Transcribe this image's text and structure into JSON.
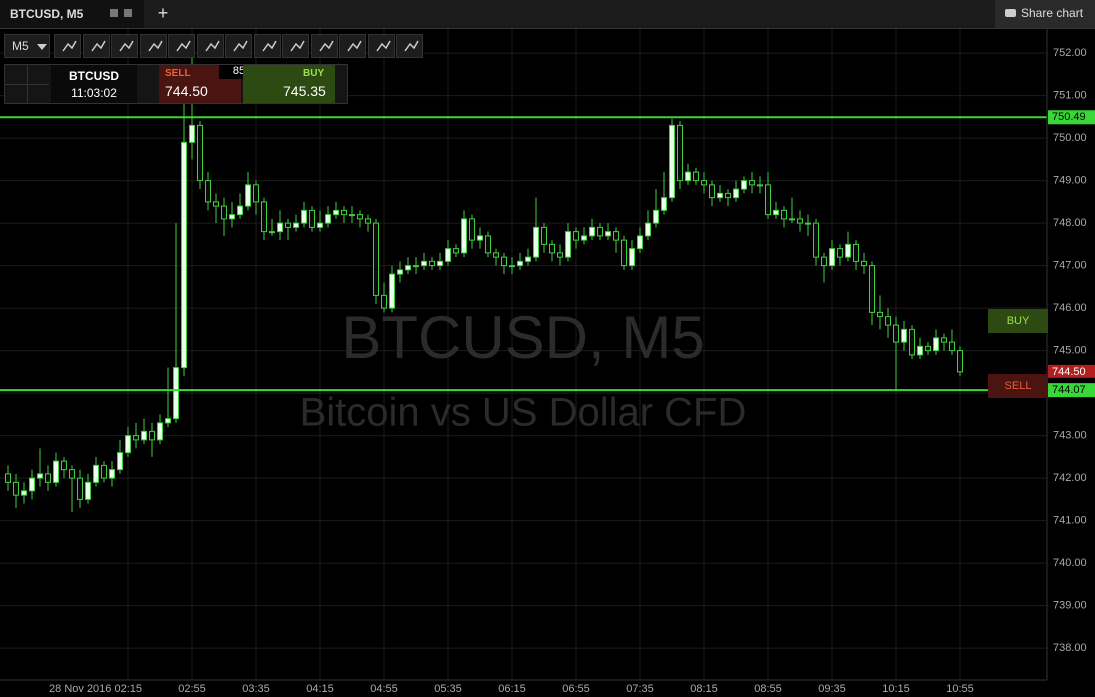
{
  "header": {
    "tab": "BTCUSD, M5",
    "share": "Share chart"
  },
  "toolbar": {
    "timeframe": "M5"
  },
  "ticket": {
    "symbol": "BTCUSD",
    "time": "11:03:02",
    "sell_label": "SELL",
    "sell_price": "744.50",
    "spread": "85",
    "buy_label": "BUY",
    "buy_price": "745.35"
  },
  "side_buttons": {
    "buy": "BUY",
    "sell": "SELL"
  },
  "chart_data": {
    "type": "candlestick",
    "title": "BTCUSD, M5",
    "subtitle": "Bitcoin vs US Dollar CFD",
    "up_color": "#eaffea",
    "down_color": "#0b0b0b",
    "wick_color": "#3fcf3f",
    "grid": true,
    "categories": [
      null,
      null,
      null,
      null,
      null,
      null,
      null,
      null,
      null,
      null,
      null,
      null,
      null,
      null,
      null,
      "28 Nov 2016 02:15",
      null,
      null,
      null,
      null,
      null,
      null,
      null,
      "02:55",
      null,
      null,
      null,
      null,
      null,
      null,
      null,
      "03:35",
      null,
      null,
      null,
      null,
      null,
      null,
      null,
      "04:15",
      null,
      null,
      null,
      null,
      null,
      null,
      null,
      "04:55",
      null,
      null,
      null,
      null,
      null,
      null,
      null,
      "05:35",
      null,
      null,
      null,
      null,
      null,
      null,
      null,
      "06:15",
      null,
      null,
      null,
      null,
      null,
      null,
      null,
      "06:55",
      null,
      null,
      null,
      null,
      null,
      null,
      null,
      "07:35",
      null,
      null,
      null,
      null,
      null,
      null,
      null,
      "08:15",
      null,
      null,
      null,
      null,
      null,
      null,
      null,
      "08:55",
      null,
      null,
      null,
      null,
      null,
      null,
      null,
      "09:35",
      null,
      null,
      null,
      null,
      null,
      null,
      null,
      "10:15",
      null,
      null,
      null,
      null,
      null,
      null,
      null,
      "10:55"
    ],
    "open": [
      742.1,
      741.9,
      741.6,
      741.7,
      742.0,
      742.1,
      741.9,
      742.4,
      742.2,
      742.0,
      741.5,
      741.9,
      742.3,
      742.0,
      742.2,
      742.6,
      743.0,
      742.9,
      743.1,
      742.9,
      743.3,
      743.4,
      744.6,
      749.9,
      750.3,
      749.0,
      748.5,
      748.4,
      748.1,
      748.2,
      748.4,
      748.9,
      748.5,
      747.8,
      747.8,
      748.0,
      747.9,
      748.0,
      748.3,
      747.9,
      748.0,
      748.2,
      748.3,
      748.2,
      748.2,
      748.1,
      748.0,
      746.3,
      746.0,
      746.8,
      746.9,
      747.0,
      747.0,
      747.1,
      747.0,
      747.1,
      747.4,
      747.3,
      748.1,
      747.6,
      747.7,
      747.3,
      747.2,
      747.0,
      747.0,
      747.1,
      747.2,
      747.9,
      747.5,
      747.3,
      747.2,
      747.8,
      747.6,
      747.7,
      747.9,
      747.7,
      747.8,
      747.6,
      747.0,
      747.4,
      747.7,
      748.0,
      748.3,
      748.6,
      750.3,
      749.0,
      749.2,
      749.0,
      748.9,
      748.6,
      748.7,
      748.6,
      748.8,
      749.0,
      748.9,
      748.9,
      748.2,
      748.3,
      748.1,
      748.1,
      748.0,
      748.0,
      747.2,
      747.0,
      747.4,
      747.2,
      747.5,
      747.1,
      747.0,
      745.9,
      745.8,
      745.6,
      745.2,
      745.5,
      744.9,
      745.1,
      745.0,
      745.3,
      745.2,
      745.0
    ],
    "high": [
      742.3,
      742.1,
      741.9,
      742.2,
      742.7,
      742.3,
      742.6,
      742.5,
      742.3,
      742.2,
      742.1,
      742.5,
      742.4,
      742.4,
      742.9,
      743.2,
      743.3,
      743.4,
      743.3,
      743.5,
      744.6,
      748.0,
      751.5,
      751.9,
      750.4,
      749.2,
      748.7,
      748.6,
      748.5,
      748.7,
      749.2,
      749.0,
      748.6,
      748.1,
      748.3,
      748.1,
      748.2,
      748.5,
      748.4,
      748.3,
      748.4,
      748.5,
      748.4,
      748.4,
      748.3,
      748.2,
      748.1,
      746.6,
      747.0,
      747.1,
      747.2,
      747.2,
      747.3,
      747.2,
      747.3,
      747.6,
      747.5,
      748.3,
      748.2,
      747.9,
      747.8,
      747.4,
      747.3,
      747.2,
      747.3,
      747.4,
      748.6,
      748.0,
      747.6,
      747.5,
      748.0,
      747.9,
      747.9,
      748.1,
      748.0,
      748.0,
      747.9,
      747.7,
      747.6,
      747.9,
      748.3,
      748.8,
      749.2,
      750.45,
      750.4,
      749.4,
      749.3,
      749.2,
      749.0,
      748.9,
      748.8,
      749.0,
      749.1,
      749.2,
      749.1,
      749.2,
      748.5,
      748.4,
      748.6,
      748.3,
      748.2,
      748.1,
      747.3,
      747.6,
      747.5,
      747.8,
      747.6,
      747.3,
      747.1,
      746.3,
      746.0,
      745.8,
      745.7,
      745.6,
      745.3,
      745.2,
      745.5,
      745.4,
      745.5,
      745.1
    ],
    "low": [
      741.7,
      741.3,
      741.4,
      741.5,
      741.8,
      741.7,
      741.8,
      742.0,
      741.2,
      741.3,
      741.4,
      741.8,
      741.9,
      741.8,
      742.1,
      742.5,
      742.7,
      742.8,
      742.5,
      742.8,
      743.2,
      743.3,
      744.4,
      749.5,
      748.8,
      748.3,
      748.0,
      747.7,
      747.9,
      748.1,
      748.3,
      748.2,
      747.6,
      747.7,
      747.6,
      747.6,
      747.8,
      747.9,
      747.8,
      747.8,
      747.9,
      748.1,
      748.0,
      748.0,
      747.9,
      747.8,
      746.1,
      745.9,
      745.9,
      746.6,
      746.8,
      746.8,
      746.9,
      746.9,
      746.9,
      747.0,
      747.2,
      747.2,
      747.4,
      747.4,
      747.2,
      747.0,
      746.8,
      746.8,
      746.9,
      747.0,
      747.1,
      747.3,
      747.1,
      747.0,
      747.1,
      747.4,
      747.5,
      747.6,
      747.6,
      747.6,
      747.3,
      746.9,
      746.9,
      747.3,
      747.6,
      747.9,
      748.2,
      748.5,
      748.8,
      748.9,
      748.9,
      748.7,
      748.4,
      748.5,
      748.4,
      748.5,
      748.7,
      748.7,
      748.7,
      748.1,
      748.1,
      747.9,
      748.0,
      747.8,
      747.7,
      747.0,
      746.6,
      746.9,
      747.0,
      747.1,
      746.9,
      746.8,
      745.6,
      745.5,
      745.3,
      744.07,
      745.0,
      744.8,
      744.8,
      744.9,
      744.9,
      745.0,
      744.9,
      744.4
    ],
    "close": [
      741.9,
      741.6,
      741.7,
      742.0,
      742.1,
      741.9,
      742.4,
      742.2,
      742.0,
      741.5,
      741.9,
      742.3,
      742.0,
      742.2,
      742.6,
      743.0,
      742.9,
      743.1,
      742.9,
      743.3,
      743.4,
      744.6,
      749.9,
      750.3,
      749.0,
      748.5,
      748.4,
      748.1,
      748.2,
      748.4,
      748.9,
      748.5,
      747.8,
      747.8,
      748.0,
      747.9,
      748.0,
      748.3,
      747.9,
      748.0,
      748.2,
      748.3,
      748.2,
      748.2,
      748.1,
      748.0,
      746.3,
      746.0,
      746.8,
      746.9,
      747.0,
      747.0,
      747.1,
      747.0,
      747.1,
      747.4,
      747.3,
      748.1,
      747.6,
      747.7,
      747.3,
      747.2,
      747.0,
      747.0,
      747.1,
      747.2,
      747.9,
      747.5,
      747.3,
      747.2,
      747.8,
      747.6,
      747.7,
      747.9,
      747.7,
      747.8,
      747.6,
      747.0,
      747.4,
      747.7,
      748.0,
      748.3,
      748.6,
      750.3,
      749.0,
      749.2,
      749.0,
      748.9,
      748.6,
      748.7,
      748.6,
      748.8,
      749.0,
      748.9,
      748.9,
      748.2,
      748.3,
      748.1,
      748.1,
      748.0,
      748.0,
      747.2,
      747.0,
      747.4,
      747.2,
      747.5,
      747.1,
      747.0,
      745.9,
      745.8,
      745.6,
      745.2,
      745.5,
      744.9,
      745.1,
      745.0,
      745.3,
      745.2,
      745.0,
      744.5
    ],
    "ylim": [
      737.25,
      753.25
    ],
    "yticks": [
      {
        "value": 738,
        "label": "738.00"
      },
      {
        "value": 739,
        "label": "739.00"
      },
      {
        "value": 740,
        "label": "740.00"
      },
      {
        "value": 741,
        "label": "741.00"
      },
      {
        "value": 742,
        "label": "742.00"
      },
      {
        "value": 743,
        "label": "743.00"
      },
      {
        "value": 744,
        "label": "744.00"
      },
      {
        "value": 745,
        "label": "745.00"
      },
      {
        "value": 746,
        "label": "746.00"
      },
      {
        "value": 747,
        "label": "747.00"
      },
      {
        "value": 748,
        "label": "748.00"
      },
      {
        "value": 749,
        "label": "749.00"
      },
      {
        "value": 750,
        "label": "750.00"
      },
      {
        "value": 751,
        "label": "751.00"
      },
      {
        "value": 752,
        "label": "752.00"
      }
    ],
    "levels": [
      750.49,
      744.07
    ],
    "level_color": "#39d839",
    "last_price": {
      "value": 744.5,
      "label": "744.50"
    },
    "last_price_color": "#b41e1e"
  }
}
